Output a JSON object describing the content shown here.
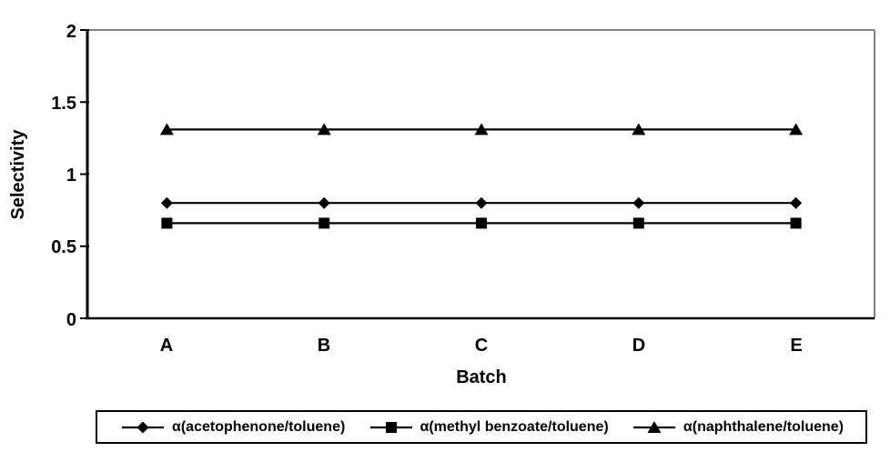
{
  "chart_data": {
    "type": "line",
    "title": "",
    "categories": [
      "A",
      "B",
      "C",
      "D",
      "E"
    ],
    "series": [
      {
        "name": "α(acetophenone/toluene)",
        "marker": "diamond",
        "color": "#000000",
        "values": [
          0.8,
          0.8,
          0.8,
          0.8,
          0.8
        ]
      },
      {
        "name": "α(methyl benzoate/toluene)",
        "marker": "square",
        "color": "#000000",
        "values": [
          0.66,
          0.66,
          0.66,
          0.66,
          0.66
        ]
      },
      {
        "name": "α(naphthalene/toluene)",
        "marker": "triangle",
        "color": "#000000",
        "values": [
          1.31,
          1.31,
          1.31,
          1.31,
          1.31
        ]
      }
    ],
    "xlabel": "Batch",
    "ylabel": "Selectivity",
    "ylim": [
      0,
      2
    ],
    "yticks": [
      0,
      0.5,
      1,
      1.5,
      2
    ],
    "ytick_labels": [
      "0",
      "0.5",
      "1",
      "1.5",
      "2"
    ],
    "grid": false,
    "legend_position": "bottom",
    "axis_color": "#000000",
    "plot_border_color": "#808080",
    "background_color": "#ffffff"
  }
}
